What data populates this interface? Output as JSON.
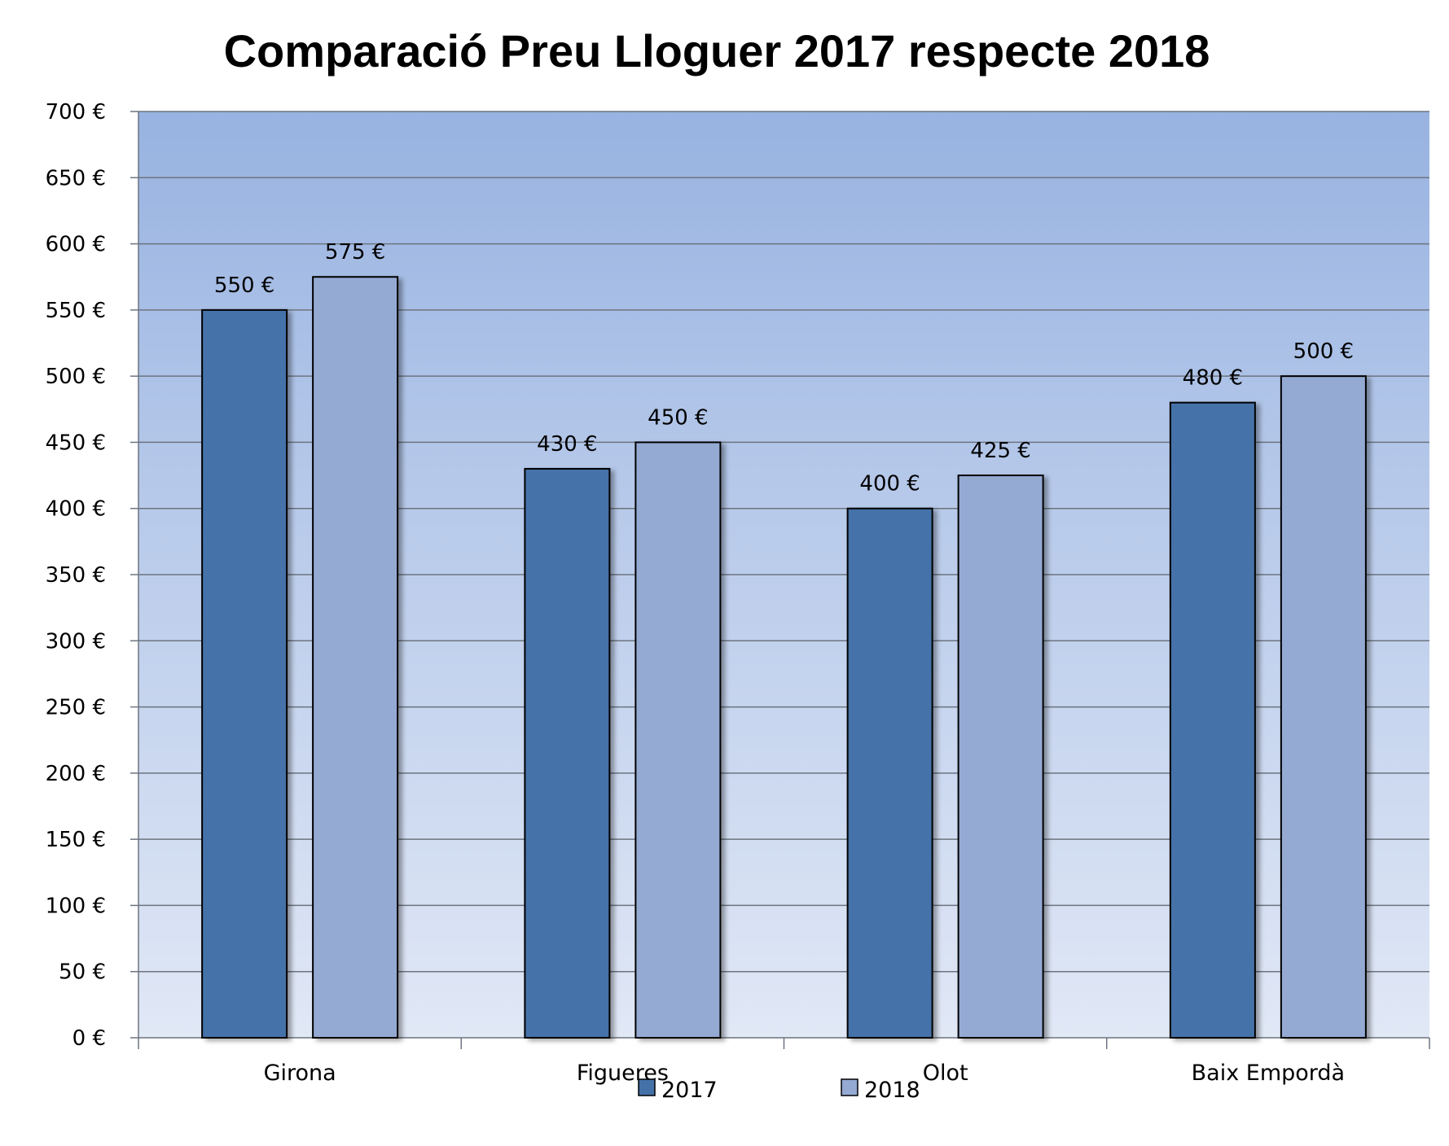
{
  "chart_data": {
    "type": "bar",
    "title": "Comparació Preu Lloguer 2017 respecte 2018",
    "categories": [
      "Girona",
      "Figueres",
      "Olot",
      "Baix Empordà"
    ],
    "series": [
      {
        "name": "2017",
        "values": [
          550,
          430,
          400,
          480
        ],
        "color": "#4472a8"
      },
      {
        "name": "2018",
        "values": [
          575,
          450,
          425,
          500
        ],
        "color": "#94aad3"
      }
    ],
    "data_labels": [
      [
        "550 €",
        "430 €",
        "400 €",
        "480 €"
      ],
      [
        "575 €",
        "450 €",
        "425 €",
        "500 €"
      ]
    ],
    "ylim": [
      0,
      700
    ],
    "y_ticks": [
      0,
      50,
      100,
      150,
      200,
      250,
      300,
      350,
      400,
      450,
      500,
      550,
      600,
      650,
      700
    ],
    "y_tick_labels": [
      "0 €",
      "50 €",
      "100 €",
      "150 €",
      "200 €",
      "250 €",
      "300 €",
      "350 €",
      "400 €",
      "450 €",
      "500 €",
      "550 €",
      "600 €",
      "650 €",
      "700 €"
    ],
    "xlabel": "",
    "ylabel": "",
    "grid": true,
    "legend_position": "bottom",
    "plot_background": "gradient light-blue",
    "bar_outline_color": "#000000"
  }
}
